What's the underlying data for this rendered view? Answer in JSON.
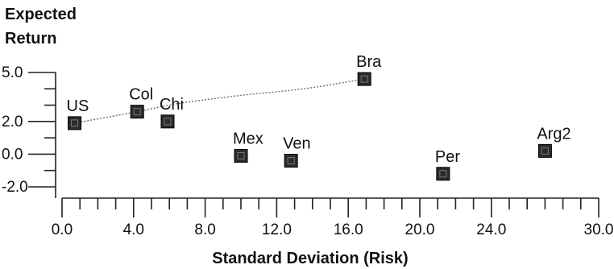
{
  "chart_data": {
    "type": "scatter",
    "title": "",
    "xlabel": "Standard Deviation (Risk)",
    "ylabel_lines": [
      "Expected",
      "Return"
    ],
    "xlim": [
      0,
      30
    ],
    "ylim": [
      -2,
      5
    ],
    "grid": false,
    "legend": "none",
    "x_ticks": [
      {
        "value": 0,
        "label": "0.0"
      },
      {
        "value": 4,
        "label": "4.0"
      },
      {
        "value": 8,
        "label": "8.0"
      },
      {
        "value": 12,
        "label": "12.0"
      },
      {
        "value": 16,
        "label": "16.0"
      },
      {
        "value": 20,
        "label": "20.0"
      },
      {
        "value": 24,
        "label": "24.0"
      },
      {
        "value": 30,
        "label": "30.0"
      }
    ],
    "x_minor_step": 1,
    "y_ticks": [
      {
        "value": 5,
        "label": "5.0"
      },
      {
        "value": 2,
        "label": "2.0"
      },
      {
        "value": 0,
        "label": "0.0"
      },
      {
        "value": -2,
        "label": "-2.0"
      }
    ],
    "y_minor_step": 1,
    "points": [
      {
        "label": "US",
        "x": 0.7,
        "y": 1.9
      },
      {
        "label": "Col",
        "x": 4.2,
        "y": 2.6
      },
      {
        "label": "Chi",
        "x": 5.9,
        "y": 2.0
      },
      {
        "label": "Mex",
        "x": 10.0,
        "y": -0.1
      },
      {
        "label": "Ven",
        "x": 12.8,
        "y": -0.4
      },
      {
        "label": "Bra",
        "x": 16.9,
        "y": 4.6
      },
      {
        "label": "Per",
        "x": 21.3,
        "y": -1.2
      },
      {
        "label": "Arg2",
        "x": 27.0,
        "y": 0.2
      }
    ],
    "frontier": [
      {
        "x": 0.7,
        "y": 1.9
      },
      {
        "x": 4.2,
        "y": 2.6
      },
      {
        "x": 6.5,
        "y": 3.1
      },
      {
        "x": 10.0,
        "y": 3.6
      },
      {
        "x": 13.5,
        "y": 4.0
      },
      {
        "x": 16.9,
        "y": 4.6
      }
    ],
    "marker_color": "#2b2b2b",
    "frontier_color": "#6f6f6f"
  }
}
